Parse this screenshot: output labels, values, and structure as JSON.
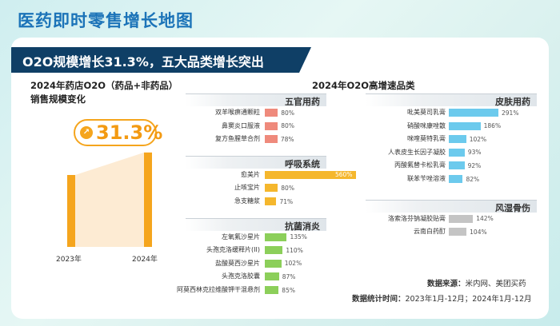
{
  "page_title": "医药即时零售增长地图",
  "banner": "O2O规模增长31.3%，五大品类增长突出",
  "left_chart": {
    "title_line1": "2024年药店O2O（药品+非药品）",
    "title_line2": "销售规模变化",
    "growth_label": "31.3%",
    "colors": {
      "bar": "#f5a51d",
      "area": "#fdebd3"
    }
  },
  "right_title": "2024年O2O高增速品类",
  "groups": [
    {
      "name": "五官用药",
      "color": "#ef8a7c",
      "column": "left",
      "items": [
        {
          "label": "双羊喉痹通颗粒",
          "value": 80,
          "display": "80%"
        },
        {
          "label": "鼻窦炎口服液",
          "value": 80,
          "display": "80%"
        },
        {
          "label": "复方鱼腥草合剂",
          "value": 78,
          "display": "78%"
        }
      ]
    },
    {
      "name": "呼吸系统",
      "color": "#f5b72d",
      "column": "left",
      "items": [
        {
          "label": "愈美片",
          "value": 560,
          "display": "560%"
        },
        {
          "label": "止咳宝片",
          "value": 80,
          "display": "80%"
        },
        {
          "label": "急支糖浆",
          "value": 71,
          "display": "71%"
        }
      ]
    },
    {
      "name": "抗菌消炎",
      "color": "#8ccf5a",
      "column": "left",
      "items": [
        {
          "label": "左氧氟沙星片",
          "value": 135,
          "display": "135%"
        },
        {
          "label": "头孢克洛缓释片(II)",
          "value": 110,
          "display": "110%"
        },
        {
          "label": "盐酸莫西沙星片",
          "value": 102,
          "display": "102%"
        },
        {
          "label": "头孢克洛胶囊",
          "value": 87,
          "display": "87%"
        },
        {
          "label": "阿莫西林克拉维酸钾干混悬剂",
          "value": 85,
          "display": "85%"
        }
      ]
    },
    {
      "name": "皮肤用药",
      "color": "#6ccaed",
      "column": "right",
      "items": [
        {
          "label": "吡美莫司乳膏",
          "value": 291,
          "display": "291%"
        },
        {
          "label": "硝酸咪康唑散",
          "value": 186,
          "display": "186%"
        },
        {
          "label": "咪喹莫特乳膏",
          "value": 102,
          "display": "102%"
        },
        {
          "label": "人表皮生长因子凝胶",
          "value": 93,
          "display": "93%"
        },
        {
          "label": "丙酸氟替卡松乳膏",
          "value": 92,
          "display": "92%"
        },
        {
          "label": "联苯苄唑溶液",
          "value": 82,
          "display": "82%"
        }
      ]
    },
    {
      "name": "风湿骨伤",
      "color": "#c4c4c4",
      "column": "right",
      "items": [
        {
          "label": "洛索洛芬钠凝胶贴膏",
          "value": 142,
          "display": "142%"
        },
        {
          "label": "云南白药酊",
          "value": 104,
          "display": "104%"
        }
      ]
    }
  ],
  "footer": {
    "source_label": "数据来源：",
    "source_value": "米内网、美团买药",
    "period_label": "数据统计时间：",
    "period_value": "2023年1月-12月；2024年1月-12月"
  },
  "chart_data": [
    {
      "type": "bar",
      "title": "2024年药店O2O（药品+非药品）销售规模变化",
      "categories": [
        "2023年",
        "2024年"
      ],
      "values": [
        1.0,
        1.313
      ],
      "annotation": "31.3%",
      "units": "relative scale (2023 = 1)"
    },
    {
      "type": "bar",
      "orientation": "horizontal",
      "title": "2024年O2O高增速品类",
      "series": [
        {
          "name": "五官用药",
          "categories": [
            "双羊喉痹通颗粒",
            "鼻窦炎口服液",
            "复方鱼腥草合剂"
          ],
          "values": [
            80,
            80,
            78
          ]
        },
        {
          "name": "呼吸系统",
          "categories": [
            "愈美片",
            "止咳宝片",
            "急支糖浆"
          ],
          "values": [
            560,
            80,
            71
          ]
        },
        {
          "name": "抗菌消炎",
          "categories": [
            "左氧氟沙星片",
            "头孢克洛缓释片(II)",
            "盐酸莫西沙星片",
            "头孢克洛胶囊",
            "阿莫西林克拉维酸钾干混悬剂"
          ],
          "values": [
            135,
            110,
            102,
            87,
            85
          ]
        },
        {
          "name": "皮肤用药",
          "categories": [
            "吡美莫司乳膏",
            "硝酸咪康唑散",
            "咪喹莫特乳膏",
            "人表皮生长因子凝胶",
            "丙酸氟替卡松乳膏",
            "联苯苄唑溶液"
          ],
          "values": [
            291,
            186,
            102,
            93,
            92,
            82
          ]
        },
        {
          "name": "风湿骨伤",
          "categories": [
            "洛索洛芬钠凝胶贴膏",
            "云南白药酊"
          ],
          "values": [
            142,
            104
          ]
        }
      ],
      "units": "%"
    }
  ]
}
